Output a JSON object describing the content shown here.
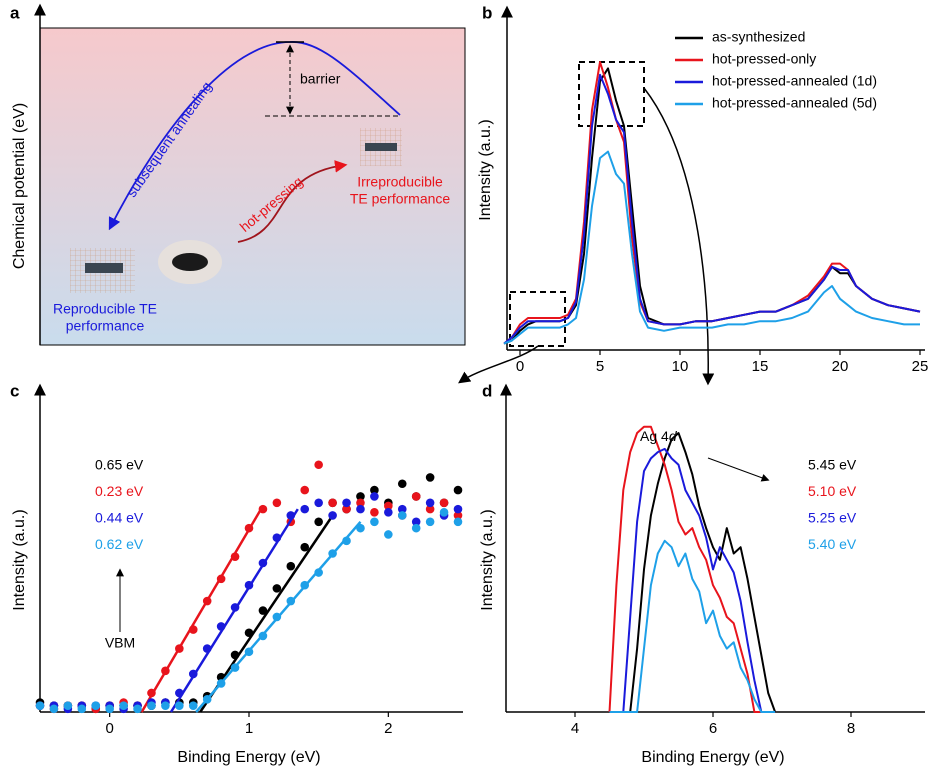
{
  "schematic": {
    "label": "a",
    "y_axis_label": "Chemical potential (eV)",
    "arrow_annealing": "subsequent annealing",
    "barrier": "barrier",
    "arrow_pressing": "hot-pressing",
    "irreproducible": [
      "Irreproducible",
      "TE performance"
    ],
    "reproducible": [
      "Reproducible TE",
      "performance"
    ]
  },
  "chart_data": [
    {
      "label": "b",
      "type": "line",
      "ylabel": "Intensity (a.u.)",
      "xlim": [
        -1,
        25
      ],
      "ylim": [
        0,
        100
      ],
      "xticks": [
        0,
        5,
        10,
        15,
        20,
        25
      ],
      "x": [
        -1,
        -0.5,
        0,
        0.5,
        1,
        1.5,
        2,
        2.5,
        3,
        3.5,
        4,
        4.5,
        5,
        5.5,
        6,
        6.5,
        7,
        7.5,
        8,
        9,
        10,
        11,
        12,
        13,
        14,
        15,
        16,
        17,
        18,
        19,
        19.5,
        20,
        20.5,
        21,
        22,
        23,
        24,
        25
      ],
      "series": [
        {
          "name": "as-synthesized",
          "color": "#000000",
          "values": [
            2,
            3,
            6,
            8,
            9,
            9,
            9,
            9,
            10,
            14,
            30,
            60,
            84,
            88,
            78,
            70,
            45,
            20,
            10,
            8,
            8,
            9,
            9,
            10,
            11,
            12,
            12,
            14,
            16,
            22,
            26,
            24,
            24,
            20,
            16,
            14,
            13,
            12
          ]
        },
        {
          "name": "hot-pressed-only",
          "color": "#e8141c",
          "values": [
            2,
            4,
            8,
            10,
            10,
            10,
            10,
            10,
            11,
            16,
            40,
            75,
            90,
            82,
            72,
            65,
            35,
            15,
            9,
            8,
            8,
            9,
            9,
            10,
            11,
            12,
            12,
            14,
            17,
            23,
            27,
            27,
            25,
            20,
            16,
            14,
            13,
            12
          ]
        },
        {
          "name": "hot-pressed-annealed (1d)",
          "color": "#1a1adb",
          "values": [
            2,
            4,
            7,
            9,
            9,
            9,
            9,
            9,
            10,
            15,
            36,
            70,
            86,
            80,
            72,
            68,
            40,
            16,
            9,
            8,
            8,
            9,
            9,
            10,
            11,
            12,
            12,
            14,
            16,
            22,
            26,
            25,
            25,
            20,
            16,
            14,
            13,
            12
          ]
        },
        {
          "name": "hot-pressed-annealed (5d)",
          "color": "#1ea0e8",
          "values": [
            2,
            3,
            5,
            7,
            7,
            7,
            7,
            7,
            8,
            10,
            22,
            45,
            60,
            62,
            55,
            52,
            30,
            12,
            7,
            6,
            7,
            7,
            7,
            8,
            8,
            9,
            9,
            10,
            12,
            18,
            20,
            16,
            14,
            12,
            10,
            9,
            8,
            8
          ]
        }
      ]
    },
    {
      "label": "c",
      "type": "scatter",
      "xlabel": "Binding Energy (eV)",
      "ylabel": "Intensity (a.u.)",
      "xlim": [
        -0.5,
        2.5
      ],
      "ylim": [
        0,
        100
      ],
      "xticks": [
        0,
        1,
        2
      ],
      "annotation": "VBM",
      "x": [
        -0.5,
        -0.4,
        -0.3,
        -0.2,
        -0.1,
        0,
        0.1,
        0.2,
        0.3,
        0.4,
        0.5,
        0.6,
        0.7,
        0.8,
        0.9,
        1,
        1.1,
        1.2,
        1.3,
        1.4,
        1.5,
        1.6,
        1.7,
        1.8,
        1.9,
        2,
        2.1,
        2.2,
        2.3,
        2.4,
        2.5
      ],
      "series": [
        {
          "label": "0.65 eV",
          "color": "#000000",
          "values": [
            3,
            2,
            2,
            2,
            1,
            2,
            2,
            2,
            2,
            3,
            3,
            3,
            5,
            11,
            18,
            25,
            32,
            39,
            46,
            52,
            60,
            66,
            64,
            68,
            70,
            66,
            72,
            68,
            74,
            66,
            70
          ],
          "fit_x": [
            0.65,
            1.6
          ],
          "fit_values": [
            0,
            62
          ]
        },
        {
          "label": "0.23 eV",
          "color": "#e8141c",
          "values": [
            2,
            1,
            2,
            2,
            1,
            2,
            3,
            2,
            6,
            13,
            20,
            26,
            35,
            42,
            49,
            58,
            64,
            66,
            60,
            70,
            78,
            66,
            64,
            66,
            63,
            65,
            62,
            68,
            64,
            66,
            62
          ],
          "fit_x": [
            0.23,
            1.1
          ],
          "fit_values": [
            0,
            65
          ]
        },
        {
          "label": "0.44 eV",
          "color": "#1a1adb",
          "values": [
            2,
            2,
            1,
            2,
            2,
            2,
            1,
            2,
            3,
            3,
            6,
            12,
            20,
            27,
            33,
            40,
            47,
            55,
            62,
            64,
            66,
            62,
            66,
            64,
            68,
            63,
            64,
            60,
            66,
            62,
            64
          ],
          "fit_x": [
            0.44,
            1.35
          ],
          "fit_values": [
            0,
            64
          ]
        },
        {
          "label": "0.62 eV",
          "color": "#1ea0e8",
          "values": [
            2,
            1,
            2,
            1,
            2,
            1,
            2,
            1,
            2,
            2,
            2,
            2,
            4,
            9,
            14,
            19,
            24,
            30,
            35,
            40,
            44,
            50,
            54,
            58,
            60,
            56,
            62,
            58,
            60,
            63,
            60
          ],
          "fit_x": [
            0.62,
            1.8
          ],
          "fit_values": [
            0,
            60
          ]
        }
      ]
    },
    {
      "label": "d",
      "type": "line",
      "xlabel": "Binding Energy (eV)",
      "ylabel": "Intensity (a.u.)",
      "xlim": [
        3,
        9
      ],
      "ylim": [
        0,
        100
      ],
      "xticks": [
        4,
        6,
        8
      ],
      "peak_label": "Ag 4",
      "peak_label_orbital": "d",
      "x": [
        4.5,
        4.6,
        4.7,
        4.8,
        4.9,
        5,
        5.1,
        5.2,
        5.3,
        5.4,
        5.5,
        5.6,
        5.7,
        5.8,
        5.9,
        6,
        6.1,
        6.2,
        6.3,
        6.4,
        6.5,
        6.6,
        6.7,
        6.8,
        6.9
      ],
      "series": [
        {
          "label": "5.45 eV",
          "color": "#000000",
          "values": [
            0,
            0,
            0,
            0,
            20,
            45,
            62,
            72,
            80,
            86,
            88,
            82,
            75,
            65,
            58,
            52,
            48,
            58,
            50,
            52,
            42,
            30,
            18,
            6,
            0
          ]
        },
        {
          "label": "5.10 eV",
          "color": "#e8141c",
          "values": [
            0,
            40,
            70,
            82,
            88,
            90,
            90,
            84,
            78,
            70,
            60,
            56,
            58,
            52,
            48,
            40,
            36,
            30,
            28,
            20,
            12,
            0,
            0,
            0,
            0
          ]
        },
        {
          "label": "5.25 eV",
          "color": "#1a1adb",
          "values": [
            0,
            0,
            0,
            30,
            60,
            76,
            80,
            82,
            83,
            80,
            78,
            70,
            66,
            62,
            55,
            45,
            52,
            48,
            44,
            35,
            22,
            10,
            0,
            0,
            0
          ]
        },
        {
          "label": "5.40 eV",
          "color": "#1ea0e8",
          "values": [
            0,
            0,
            0,
            0,
            0,
            20,
            40,
            50,
            54,
            52,
            46,
            50,
            42,
            38,
            28,
            32,
            24,
            20,
            22,
            14,
            10,
            4,
            0,
            0,
            0
          ]
        }
      ]
    }
  ]
}
